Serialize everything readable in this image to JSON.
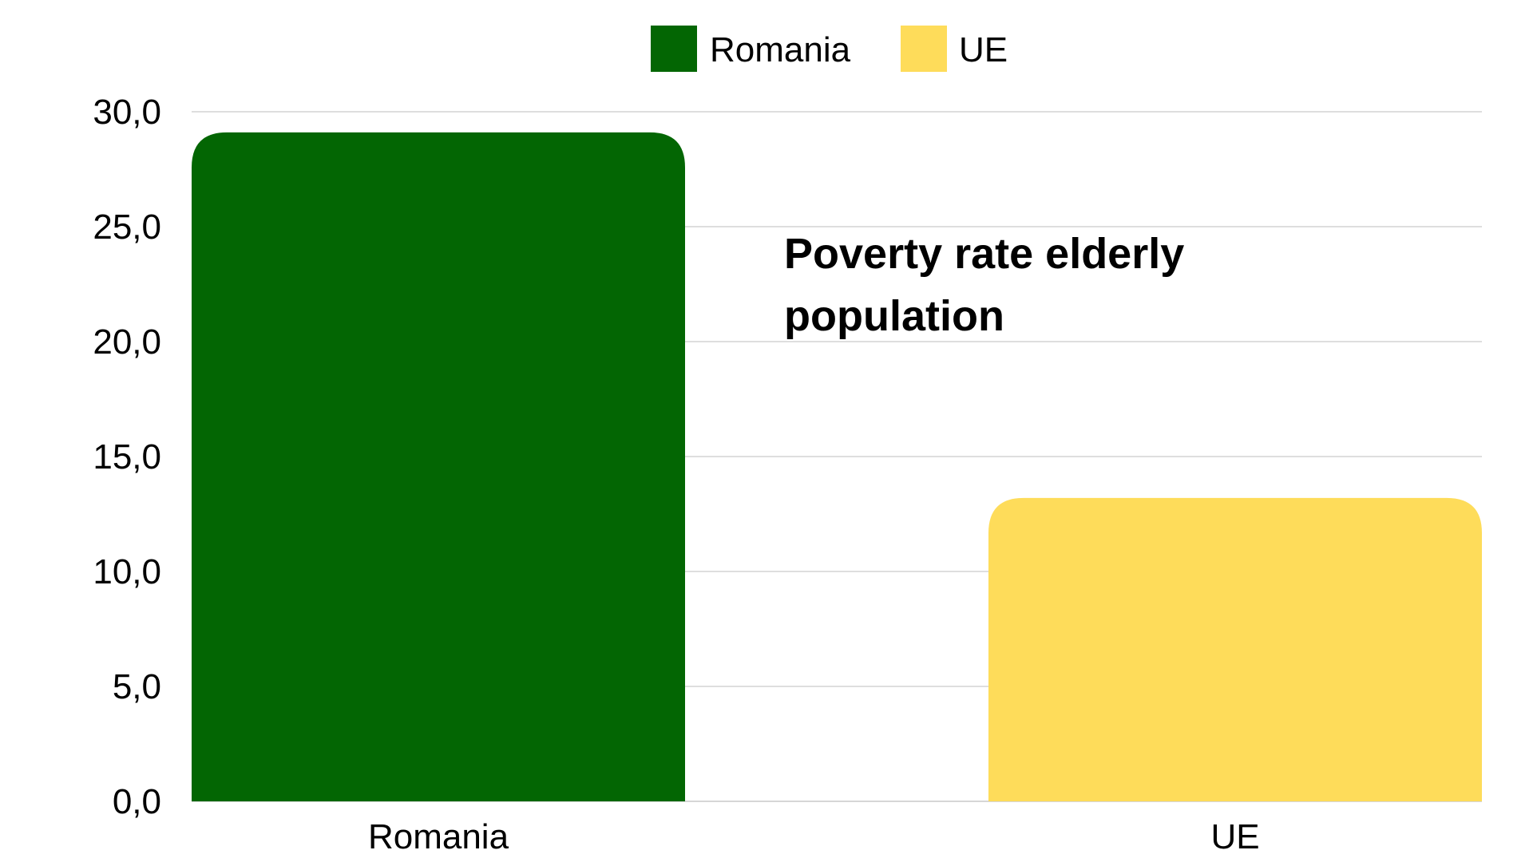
{
  "chart_data": {
    "type": "bar",
    "title_lines": [
      "Poverty rate elderly",
      "population"
    ],
    "categories": [
      "Romania",
      "UE"
    ],
    "series": [
      {
        "name": "Romania",
        "values": [
          29.1,
          null
        ],
        "color": "#036603"
      },
      {
        "name": "UE",
        "values": [
          null,
          13.2
        ],
        "color": "#FEDC5A"
      }
    ],
    "ylim": [
      0,
      30
    ],
    "yticks": [
      "0,0",
      "5,0",
      "10,0",
      "15,0",
      "20,0",
      "25,0",
      "30,0"
    ],
    "ytick_values": [
      0,
      5,
      10,
      15,
      20,
      25,
      30
    ],
    "grid": true,
    "legend_position": "top-center",
    "legend": [
      {
        "label": "Romania",
        "color": "#036603"
      },
      {
        "label": "UE",
        "color": "#FEDC5A"
      }
    ],
    "xlabel": "",
    "ylabel": ""
  }
}
